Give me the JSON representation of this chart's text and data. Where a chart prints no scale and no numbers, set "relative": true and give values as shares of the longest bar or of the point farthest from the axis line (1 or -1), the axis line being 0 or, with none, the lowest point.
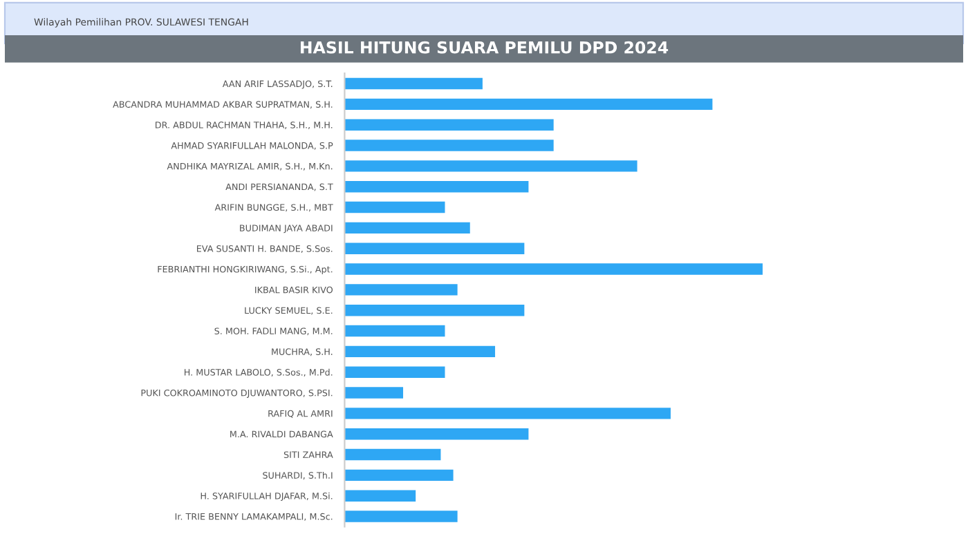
{
  "chart_data": {
    "type": "bar",
    "orientation": "horizontal",
    "relative": true,
    "title": "HASIL HITUNG SUARA PEMILU DPD 2024",
    "annotations": [
      "Wilayah Pemilihan PROV. SULAWESI TENGAH"
    ],
    "categories": [
      "AAN ARIF LASSADJO, S.T.",
      "ABCANDRA MUHAMMAD AKBAR SUPRATMAN, S.H.",
      "DR. ABDUL RACHMAN THAHA, S.H., M.H.",
      "AHMAD SYARIFULLAH MALONDA, S.P",
      "ANDHIKA MAYRIZAL AMIR, S.H., M.Kn.",
      "ANDI PERSIANANDA, S.T",
      "ARIFIN BUNGGE, S.H., MBT",
      "BUDIMAN JAYA ABADI",
      "EVA SUSANTI H. BANDE, S.Sos.",
      "FEBRIANTHI HONGKIRIWANG, S.Si., Apt.",
      "IKBAL BASIR KIVO",
      "LUCKY SEMUEL, S.E.",
      "S. MOH. FADLI MANG, M.M.",
      "MUCHRA, S.H.",
      "H. MUSTAR LABOLO, S.Sos., M.Pd.",
      "PUKI COKROAMINOTO DJUWANTORO, S.PSI.",
      "RAFIQ AL AMRI",
      "M.A. RIVALDI DABANGA",
      "SITI ZAHRA",
      "SUHARDI, S.Th.I",
      "H. SYARIFULLAH DJAFAR, M.Si.",
      "Ir. TRIE BENNY LAMAKAMPALI, M.Sc."
    ],
    "values": [
      0.33,
      0.88,
      0.5,
      0.5,
      0.7,
      0.44,
      0.24,
      0.3,
      0.43,
      1,
      0.27,
      0.43,
      0.24,
      0.36,
      0.24,
      0.14,
      0.78,
      0.44,
      0.23,
      0.26,
      0.17,
      0.27
    ],
    "color": "#2ea7f4"
  }
}
